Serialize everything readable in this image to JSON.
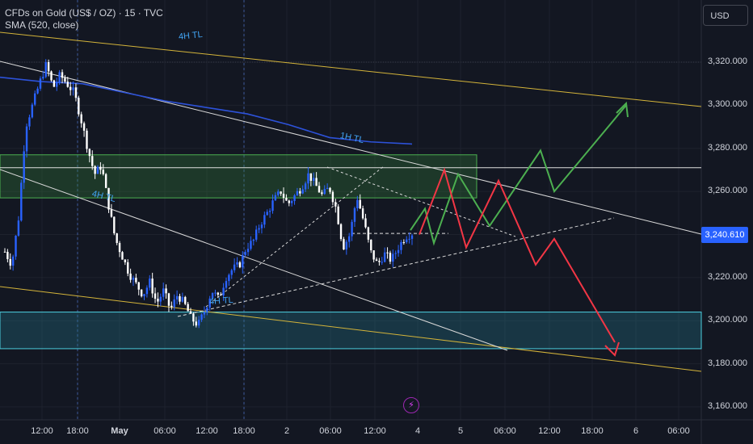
{
  "header": {
    "symbol_line": "CFDs on Gold (US$ / OZ) · 15 · TVC",
    "indicator_line": "SMA (520, close)"
  },
  "currency_button": "USD",
  "price_tag": "3,240.610",
  "colors": {
    "background": "#131722",
    "candle_up": "#2962ff",
    "candle_down": "#ffffff",
    "sma": "#2d52d9",
    "yellow_tl": "#d4b43a",
    "white_tl": "#d9d9d9",
    "green_path": "#4caf50",
    "red_path": "#f23645",
    "zone_green": "#2e5a3a",
    "zone_teal": "#1d4a55",
    "zone_teal_border": "#4dd0e1"
  },
  "chart_data": {
    "type": "candlestick",
    "title": "CFDs on Gold (US$ / OZ) · 15 · TVC",
    "indicator": "SMA (520, close)",
    "ylim": [
      3153,
      3330
    ],
    "y_ticks": [
      "3,320.000",
      "3,300.000",
      "3,280.000",
      "3,260.000",
      "3,240.000",
      "3,220.000",
      "3,200.000",
      "3,180.000",
      "3,160.000"
    ],
    "x_ticks": [
      "12:00",
      "18:00",
      "May",
      "06:00",
      "12:00",
      "18:00",
      "2",
      "06:00",
      "12:00",
      "4",
      "5",
      "06:00",
      "12:00",
      "18:00",
      "6",
      "06:00"
    ],
    "last_price": 3240.61,
    "price_path": [
      3232,
      3226,
      3248,
      3290,
      3300,
      3310,
      3319,
      3308,
      3314,
      3310,
      3306,
      3294,
      3280,
      3268,
      3272,
      3254,
      3238,
      3230,
      3222,
      3217,
      3212,
      3218,
      3208,
      3214,
      3205,
      3212,
      3208,
      3201,
      3198,
      3205,
      3214,
      3210,
      3220,
      3224,
      3226,
      3234,
      3237,
      3245,
      3250,
      3256,
      3260,
      3254,
      3258,
      3262,
      3268,
      3263,
      3258,
      3262,
      3252,
      3234,
      3240,
      3258,
      3246,
      3232,
      3226,
      3231,
      3228,
      3234,
      3239,
      3240.61
    ],
    "sma_path": [
      3313,
      3311,
      3310,
      3306,
      3302,
      3299,
      3296,
      3291,
      3285,
      3283,
      3282
    ],
    "zones": [
      {
        "name": "green-supply-zone",
        "from": 3257,
        "to": 3277,
        "color": "green"
      },
      {
        "name": "teal-demand-zone",
        "from": 3187,
        "to": 3204,
        "color": "teal"
      }
    ],
    "horizontal_levels": [
      3271,
      3240.5
    ],
    "annotations": [
      "4H TL",
      "1H TL",
      "4H TL",
      "4H TL"
    ],
    "projection_paths": [
      {
        "name": "green-bullish-path",
        "color": "green",
        "values": [
          3242,
          3252,
          3236,
          3268,
          3244,
          3279,
          3260,
          3300
        ]
      },
      {
        "name": "red-bearish-path",
        "color": "red",
        "values": [
          3240,
          3270,
          3234,
          3265,
          3226,
          3238,
          3190
        ]
      }
    ]
  }
}
